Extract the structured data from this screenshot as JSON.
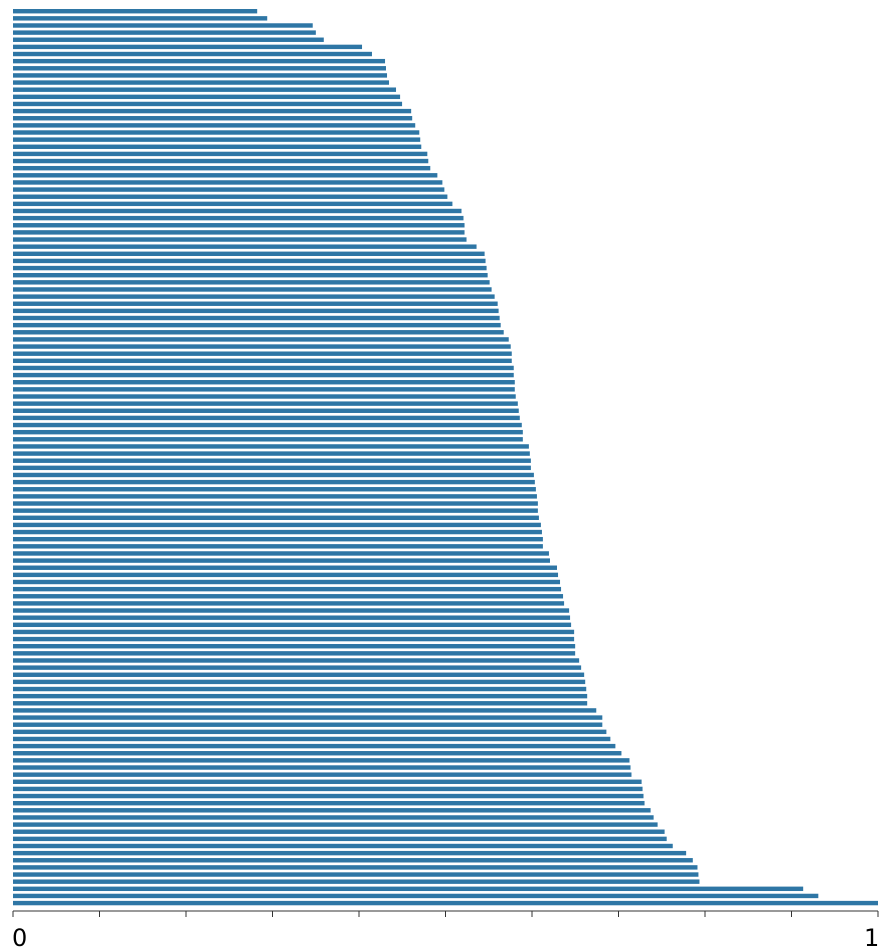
{
  "chart_data": {
    "type": "bar",
    "orientation": "horizontal",
    "title": "",
    "xlabel": "",
    "ylabel": "",
    "xlim": [
      0,
      1
    ],
    "x_ticks": [
      0,
      0.1,
      0.2,
      0.3,
      0.4,
      0.5,
      0.6,
      0.7,
      0.8,
      0.9,
      1
    ],
    "x_tick_labels": [
      "0",
      "",
      "",
      "",
      "",
      "",
      "",
      "",
      "",
      "",
      "1"
    ],
    "grid": false,
    "bar_color": "#2e76a5",
    "values": [
      0.2823,
      0.2939,
      0.3465,
      0.3501,
      0.3593,
      0.4035,
      0.415,
      0.4301,
      0.4312,
      0.4324,
      0.4347,
      0.4428,
      0.4475,
      0.4498,
      0.4603,
      0.4615,
      0.465,
      0.4697,
      0.4708,
      0.472,
      0.479,
      0.4801,
      0.4824,
      0.4906,
      0.4964,
      0.4987,
      0.5022,
      0.508,
      0.5185,
      0.5208,
      0.522,
      0.522,
      0.5243,
      0.5359,
      0.5452,
      0.5463,
      0.5475,
      0.5487,
      0.551,
      0.5533,
      0.5568,
      0.5603,
      0.5614,
      0.5626,
      0.5638,
      0.5673,
      0.5731,
      0.5754,
      0.5766,
      0.5766,
      0.5789,
      0.5789,
      0.5801,
      0.5801,
      0.5812,
      0.5836,
      0.5847,
      0.5859,
      0.5882,
      0.5894,
      0.5894,
      0.5964,
      0.5975,
      0.5987,
      0.5987,
      0.6022,
      0.6033,
      0.6045,
      0.6057,
      0.6068,
      0.6068,
      0.608,
      0.6103,
      0.6115,
      0.6126,
      0.6126,
      0.6196,
      0.6208,
      0.6289,
      0.6301,
      0.6324,
      0.6336,
      0.6359,
      0.6371,
      0.6429,
      0.644,
      0.6452,
      0.6487,
      0.6487,
      0.6499,
      0.6499,
      0.6545,
      0.6568,
      0.6603,
      0.6615,
      0.6627,
      0.6638,
      0.6638,
      0.6743,
      0.6813,
      0.6813,
      0.686,
      0.6906,
      0.6964,
      0.7034,
      0.7127,
      0.7139,
      0.715,
      0.7267,
      0.7278,
      0.7301,
      0.7371,
      0.7406,
      0.7452,
      0.7533,
      0.7557,
      0.7627,
      0.7289,
      0.7782,
      0.7859,
      0.7913,
      0.7924,
      0.7936,
      0.9135,
      0.931,
      1.0
    ]
  }
}
